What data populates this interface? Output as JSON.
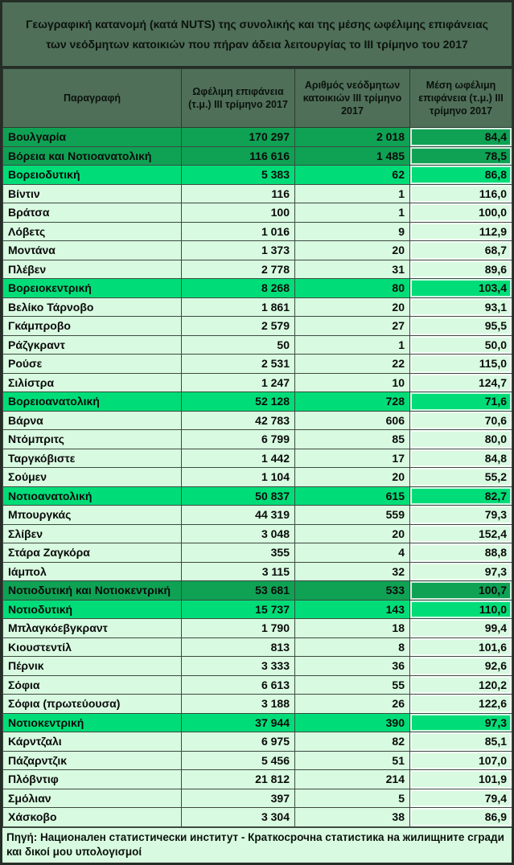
{
  "title": "Γεωγραφική κατανομή (κατά NUTS) της  συνολικής και της μέσης ωφέλιμης επιφάνειας των νεόδμητων κατοικιών που πήραν άδεια λειτουργίας το III τρίμηνο του 2017",
  "footer": {
    "source_text": "Πηγή: Национален статистически институт - Краткосрочна статистика на жилищните сгради και δικοί μου υπολογισμοί"
  },
  "colors": {
    "header_bg": "#4f6f59",
    "major_total_row_bg": "#0fa254",
    "region_total_row_bg": "#00dd78",
    "district_row_bg": "#d8fae0",
    "grid_border": "#3c4a40",
    "outer_border": "#242e26"
  },
  "chart_data": {
    "type": "table",
    "title": "Γεωγραφική κατανομή (κατά NUTS) της  συνολικής και της μέσης ωφέλιμης επιφάνειας των νεόδμητων κατοικιών που πήραν άδεια λειτουργίας το III τρίμηνο του 2017",
    "columns": [
      "Παραγραφή",
      "Ωφέλιμη επιφάνεια (τ.μ.) III τρίμηνο 2017",
      "Αριθμός νεόδμητων κατοικιών III τρίμηνο 2017",
      "Μέση ωφέλιμη επιφάνεια (τ.μ.) III τρίμηνο 2017"
    ],
    "rows": [
      {
        "name": "Βουλγαρία",
        "area": "170 297",
        "count": "2 018",
        "avg": "84,4",
        "level": "major"
      },
      {
        "name": "Βόρεια και Νοτιοανατολική",
        "area": "116 616",
        "count": "1 485",
        "avg": "78,5",
        "level": "major"
      },
      {
        "name": "Βορειοδυτική",
        "area": "5 383",
        "count": "62",
        "avg": "86,8",
        "level": "region"
      },
      {
        "name": "Βίντιν",
        "area": "116",
        "count": "1",
        "avg": "116,0",
        "level": "district"
      },
      {
        "name": "Βράτσα",
        "area": "100",
        "count": "1",
        "avg": "100,0",
        "level": "district"
      },
      {
        "name": "Λόβετς",
        "area": "1 016",
        "count": "9",
        "avg": "112,9",
        "level": "district"
      },
      {
        "name": "Μοντάνα",
        "area": "1 373",
        "count": "20",
        "avg": "68,7",
        "level": "district"
      },
      {
        "name": "Πλέβεν",
        "area": "2 778",
        "count": "31",
        "avg": "89,6",
        "level": "district"
      },
      {
        "name": "Βορειοκεντρική",
        "area": "8 268",
        "count": "80",
        "avg": "103,4",
        "level": "region"
      },
      {
        "name": "Βελίκο Τάρνοβο",
        "area": "1 861",
        "count": "20",
        "avg": "93,1",
        "level": "district"
      },
      {
        "name": "Γκάμπροβο",
        "area": "2 579",
        "count": "27",
        "avg": "95,5",
        "level": "district"
      },
      {
        "name": "Ράζγκραντ",
        "area": "50",
        "count": "1",
        "avg": "50,0",
        "level": "district"
      },
      {
        "name": "Ρούσε",
        "area": "2 531",
        "count": "22",
        "avg": "115,0",
        "level": "district"
      },
      {
        "name": "Σιλίστρα",
        "area": "1 247",
        "count": "10",
        "avg": "124,7",
        "level": "district"
      },
      {
        "name": "Βορειοανατολική",
        "area": "52 128",
        "count": "728",
        "avg": "71,6",
        "level": "region"
      },
      {
        "name": "Βάρνα",
        "area": "42 783",
        "count": "606",
        "avg": "70,6",
        "level": "district"
      },
      {
        "name": "Ντόμπριτς",
        "area": "6 799",
        "count": "85",
        "avg": "80,0",
        "level": "district"
      },
      {
        "name": "Ταργκόβιστε",
        "area": "1 442",
        "count": "17",
        "avg": "84,8",
        "level": "district"
      },
      {
        "name": "Σούμεν",
        "area": "1 104",
        "count": "20",
        "avg": "55,2",
        "level": "district"
      },
      {
        "name": "Νοτιοανατολική",
        "area": "50 837",
        "count": "615",
        "avg": "82,7",
        "level": "region"
      },
      {
        "name": "Μπουργκάς",
        "area": "44 319",
        "count": "559",
        "avg": "79,3",
        "level": "district"
      },
      {
        "name": "Σλίβεν",
        "area": "3 048",
        "count": "20",
        "avg": "152,4",
        "level": "district"
      },
      {
        "name": "Στάρα Ζαγκόρα",
        "area": "355",
        "count": "4",
        "avg": "88,8",
        "level": "district"
      },
      {
        "name": "Ιάμπολ",
        "area": "3 115",
        "count": "32",
        "avg": "97,3",
        "level": "district"
      },
      {
        "name": "Νοτιοδυτική και Νοτιοκεντρική",
        "area": "53 681",
        "count": "533",
        "avg": "100,7",
        "level": "major"
      },
      {
        "name": "Νοτιοδυτική",
        "area": "15 737",
        "count": "143",
        "avg": "110,0",
        "level": "region"
      },
      {
        "name": "Μπλαγκόεβγκραντ",
        "area": "1 790",
        "count": "18",
        "avg": "99,4",
        "level": "district"
      },
      {
        "name": "Κιουστεντίλ",
        "area": "813",
        "count": "8",
        "avg": "101,6",
        "level": "district"
      },
      {
        "name": "Πέρνικ",
        "area": "3 333",
        "count": "36",
        "avg": "92,6",
        "level": "district"
      },
      {
        "name": "Σόφια",
        "area": "6 613",
        "count": "55",
        "avg": "120,2",
        "level": "district"
      },
      {
        "name": "Σόφια (πρωτεύουσα)",
        "area": "3 188",
        "count": "26",
        "avg": "122,6",
        "level": "district"
      },
      {
        "name": "Νοτιοκεντρική",
        "area": "37 944",
        "count": "390",
        "avg": "97,3",
        "level": "region"
      },
      {
        "name": "Κάρντζαλι",
        "area": "6 975",
        "count": "82",
        "avg": "85,1",
        "level": "district"
      },
      {
        "name": "Πάζαρντζικ",
        "area": "5 456",
        "count": "51",
        "avg": "107,0",
        "level": "district"
      },
      {
        "name": "Πλόβντιφ",
        "area": "21 812",
        "count": "214",
        "avg": "101,9",
        "level": "district"
      },
      {
        "name": "Σμόλιαν",
        "area": "397",
        "count": "5",
        "avg": "79,4",
        "level": "district"
      },
      {
        "name": "Χάσκοβο",
        "area": "3 304",
        "count": "38",
        "avg": "86,9",
        "level": "district"
      }
    ],
    "source": "Πηγή: Национален статистически институт - Краткосрочна статистика на жилищните сгради και δικοί μου υπολογισμοί"
  }
}
